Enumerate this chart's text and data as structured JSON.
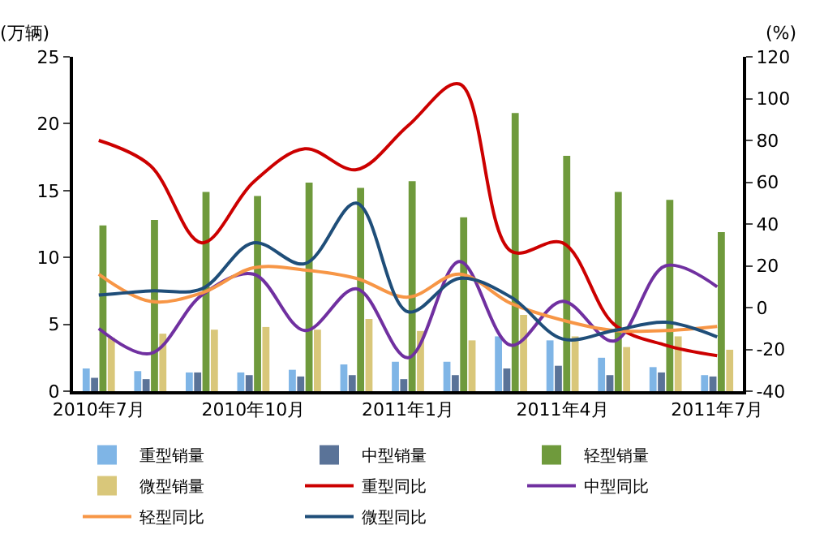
{
  "chart_data": {
    "type": "bar",
    "categories": [
      "2010年7月",
      null,
      null,
      "2010年10月",
      null,
      null,
      "2011年1月",
      null,
      null,
      "2011年4月",
      null,
      null,
      "2011年7月"
    ],
    "ylabel": "(万辆)",
    "y2label": "(%)",
    "ylim": [
      0,
      25
    ],
    "yticks": [
      0,
      5,
      10,
      15,
      20,
      25
    ],
    "y2lim": [
      -40,
      120
    ],
    "y2ticks": [
      -40,
      -20,
      0,
      20,
      40,
      60,
      80,
      100,
      120
    ],
    "legend": "bottom",
    "series": [
      {
        "name": "重型销量",
        "color": "#7fb5e6",
        "values": [
          1.7,
          1.5,
          1.4,
          1.4,
          1.6,
          2.0,
          2.2,
          2.2,
          4.1,
          3.8,
          2.5,
          1.8,
          1.2
        ]
      },
      {
        "name": "中型销量",
        "color": "#5a7398",
        "values": [
          1.0,
          0.9,
          1.4,
          1.2,
          1.1,
          1.2,
          0.9,
          1.2,
          1.7,
          1.9,
          1.2,
          1.4,
          1.1
        ]
      },
      {
        "name": "轻型销量",
        "color": "#6f9a3c",
        "values": [
          12.4,
          12.8,
          14.9,
          14.6,
          15.6,
          15.2,
          15.7,
          13.0,
          20.8,
          17.6,
          14.9,
          14.3,
          11.9
        ]
      },
      {
        "name": "微型销量",
        "color": "#d9c77a",
        "values": [
          4.0,
          4.3,
          4.6,
          4.8,
          4.6,
          5.4,
          4.5,
          3.8,
          5.7,
          4.1,
          3.3,
          4.1,
          3.1
        ]
      },
      {
        "name": "重型同比",
        "type": "line",
        "axis": "y2",
        "color": "#cc0000",
        "values": [
          80,
          68,
          31,
          60,
          76,
          66,
          87,
          107,
          27,
          31,
          -8,
          -18,
          -23
        ]
      },
      {
        "name": "中型同比",
        "type": "line",
        "axis": "y2",
        "color": "#7030a0",
        "values": [
          -10,
          -22,
          6,
          16,
          -11,
          9,
          -24,
          22,
          -18,
          3,
          -16,
          20,
          10
        ]
      },
      {
        "name": "轻型同比",
        "type": "line",
        "axis": "y2",
        "color": "#f79646",
        "values": [
          16,
          3,
          7,
          19,
          18,
          14,
          5,
          16,
          2,
          -6,
          -11,
          -11,
          -9
        ]
      },
      {
        "name": "微型同比",
        "type": "line",
        "axis": "y2",
        "color": "#1f4e79",
        "values": [
          6,
          8,
          9,
          31,
          21,
          50,
          -2,
          14,
          5,
          -15,
          -11,
          -7,
          -14
        ]
      }
    ]
  }
}
